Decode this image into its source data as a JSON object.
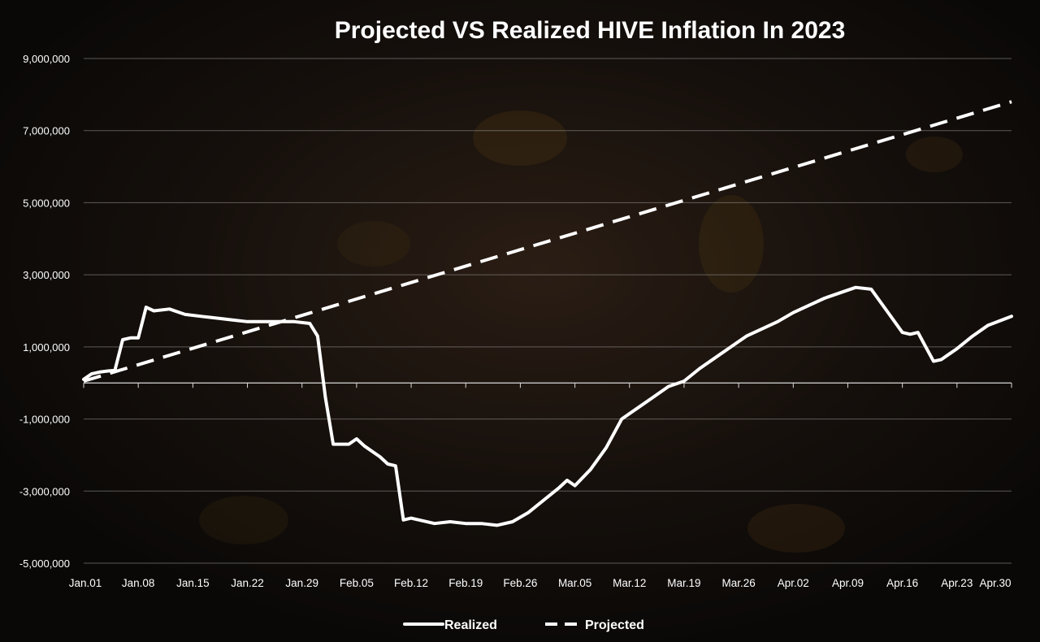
{
  "chart_data": {
    "type": "line",
    "title": "Projected VS Realized HIVE Inflation In 2023",
    "xlabel": "",
    "ylabel": "",
    "ylim": [
      -5000000,
      9000000
    ],
    "y_ticks": [
      -5000000,
      -3000000,
      -1000000,
      1000000,
      3000000,
      5000000,
      7000000,
      9000000
    ],
    "y_tick_labels": [
      "-5,000,000",
      "-3,000,000",
      "-1,000,000",
      "1,000,000",
      "3,000,000",
      "5,000,000",
      "7,000,000",
      "9,000,000"
    ],
    "x_range": [
      "2023-01-01",
      "2023-04-30"
    ],
    "x_tick_labels": [
      "Jan.01",
      "Jan.08",
      "Jan.15",
      "Jan.22",
      "Jan.29",
      "Feb.05",
      "Feb.12",
      "Feb.19",
      "Feb.26",
      "Mar.05",
      "Mar.12",
      "Mar.19",
      "Mar.26",
      "Apr.02",
      "Apr.09",
      "Apr.16",
      "Apr.23",
      "Apr.30"
    ],
    "grid": "horizontal",
    "legend_position": "bottom-center",
    "series": [
      {
        "name": "Realized",
        "color": "#ffffff",
        "style": "solid",
        "x": [
          "2023-01-01",
          "2023-01-02",
          "2023-01-03",
          "2023-01-04",
          "2023-01-05",
          "2023-01-06",
          "2023-01-07",
          "2023-01-08",
          "2023-01-09",
          "2023-01-10",
          "2023-01-12",
          "2023-01-14",
          "2023-01-16",
          "2023-01-18",
          "2023-01-20",
          "2023-01-22",
          "2023-01-24",
          "2023-01-26",
          "2023-01-28",
          "2023-01-30",
          "2023-01-31",
          "2023-02-01",
          "2023-02-02",
          "2023-02-03",
          "2023-02-04",
          "2023-02-05",
          "2023-02-06",
          "2023-02-07",
          "2023-02-08",
          "2023-02-09",
          "2023-02-10",
          "2023-02-11",
          "2023-02-12",
          "2023-02-13",
          "2023-02-15",
          "2023-02-17",
          "2023-02-19",
          "2023-02-21",
          "2023-02-23",
          "2023-02-25",
          "2023-02-27",
          "2023-03-01",
          "2023-03-03",
          "2023-03-04",
          "2023-03-05",
          "2023-03-07",
          "2023-03-09",
          "2023-03-11",
          "2023-03-13",
          "2023-03-15",
          "2023-03-17",
          "2023-03-19",
          "2023-03-21",
          "2023-03-23",
          "2023-03-25",
          "2023-03-27",
          "2023-03-29",
          "2023-03-31",
          "2023-04-02",
          "2023-04-04",
          "2023-04-06",
          "2023-04-08",
          "2023-04-10",
          "2023-04-12",
          "2023-04-14",
          "2023-04-16",
          "2023-04-17",
          "2023-04-18",
          "2023-04-19",
          "2023-04-20",
          "2023-04-21",
          "2023-04-22",
          "2023-04-23",
          "2023-04-25",
          "2023-04-27",
          "2023-04-30"
        ],
        "values": [
          100000,
          250000,
          300000,
          330000,
          350000,
          1200000,
          1250000,
          1250000,
          2100000,
          2000000,
          2050000,
          1900000,
          1850000,
          1800000,
          1750000,
          1700000,
          1700000,
          1700000,
          1700000,
          1650000,
          1300000,
          -400000,
          -1700000,
          -1700000,
          -1700000,
          -1550000,
          -1750000,
          -1900000,
          -2050000,
          -2250000,
          -2300000,
          -3800000,
          -3750000,
          -3800000,
          -3900000,
          -3850000,
          -3900000,
          -3900000,
          -3950000,
          -3850000,
          -3600000,
          -3250000,
          -2900000,
          -2700000,
          -2850000,
          -2400000,
          -1800000,
          -1000000,
          -700000,
          -400000,
          -100000,
          50000,
          400000,
          700000,
          1000000,
          1300000,
          1500000,
          1700000,
          1950000,
          2150000,
          2350000,
          2500000,
          2650000,
          2600000,
          2000000,
          1400000,
          1350000,
          1400000,
          1000000,
          600000,
          650000,
          800000,
          950000,
          1300000,
          1600000,
          1850000
        ]
      },
      {
        "name": "Projected",
        "color": "#ffffff",
        "style": "dashed",
        "x": [
          "2023-01-01",
          "2023-04-30"
        ],
        "values": [
          50000,
          7800000
        ]
      }
    ]
  }
}
